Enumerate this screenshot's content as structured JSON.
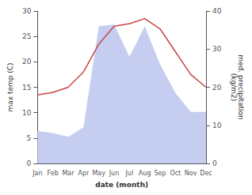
{
  "chart_data": {
    "type": "line",
    "xlabel": "date (month)",
    "ylabel": "max temp (C)",
    "y2label": "med. precipitation\n(kg/m2)",
    "categories": [
      "Jan",
      "Feb",
      "Mar",
      "Apr",
      "May",
      "Jun",
      "Jul",
      "Aug",
      "Sep",
      "Oct",
      "Nov",
      "Dec"
    ],
    "series": [
      {
        "type": "area",
        "axis": "y2",
        "color": "#c5cef0",
        "values": [
          8.5,
          8.0,
          7.0,
          9.5,
          36.0,
          36.5,
          28.0,
          36.0,
          26.0,
          18.5,
          13.5,
          13.5
        ]
      },
      {
        "type": "line",
        "color": "#cc4444",
        "values": [
          13.5,
          14.0,
          15.0,
          18.0,
          23.5,
          27.0,
          27.5,
          28.5,
          26.5,
          22.0,
          17.5,
          15.0
        ]
      }
    ],
    "ylim": [
      0,
      30
    ],
    "yticks": [
      0,
      5,
      10,
      15,
      20,
      25,
      30
    ],
    "y2lim": [
      0,
      40
    ],
    "y2ticks": [
      0,
      10,
      20,
      30,
      40
    ],
    "grid": false
  }
}
